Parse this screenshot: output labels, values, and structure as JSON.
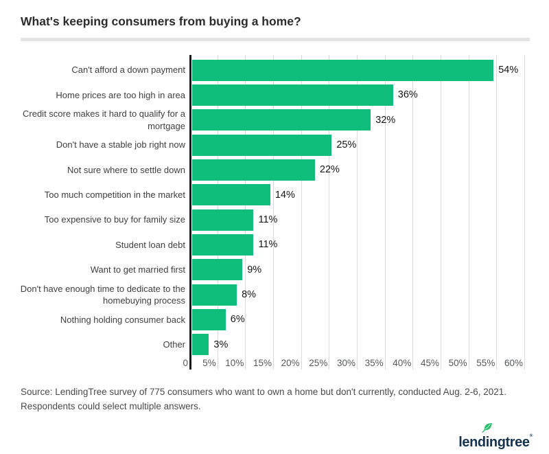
{
  "page": {
    "title": "What's keeping consumers from buying a home?"
  },
  "chart_data": {
    "type": "bar",
    "orientation": "horizontal",
    "title": "What's keeping consumers from buying a home?",
    "categories": [
      "Can't afford a down payment",
      "Home prices are too high in area",
      "Credit score makes it hard to qualify for a\nmortgage",
      "Don't have a stable job right now",
      "Not sure where to settle down",
      "Too much competition in the market",
      "Too expensive to buy for family size",
      "Student loan debt",
      "Want to get married first",
      "Don't have enough time to dedicate to the\nhomebuying process",
      "Nothing holding consumer back",
      "Other"
    ],
    "values": [
      54,
      36,
      32,
      25,
      22,
      14,
      11,
      11,
      9,
      8,
      6,
      3
    ],
    "value_labels": [
      "54%",
      "36%",
      "32%",
      "25%",
      "22%",
      "14%",
      "11%",
      "11%",
      "9%",
      "8%",
      "6%",
      "3%"
    ],
    "x_ticks": [
      "0",
      "5%",
      "10%",
      "15%",
      "20%",
      "25%",
      "30%",
      "35%",
      "40%",
      "45%",
      "50%",
      "55%",
      "60%"
    ],
    "xlim": [
      0,
      60
    ],
    "grid": true,
    "legend": false,
    "bar_color": "#0ebe7a",
    "grid_color": "#d9d9d9",
    "axis_color": "#1a1a1a"
  },
  "source": {
    "text": "Source: LendingTree survey of 775 consumers who want to own a home but don't currently, conducted Aug. 2-6, 2021.\nRespondents could select multiple answers."
  },
  "logo": {
    "text_before_i": "lend",
    "i": "i",
    "text_after_i": "ngtree",
    "registered": "®",
    "text_color": "#16324d",
    "leaf_color": "#2abf6d"
  }
}
